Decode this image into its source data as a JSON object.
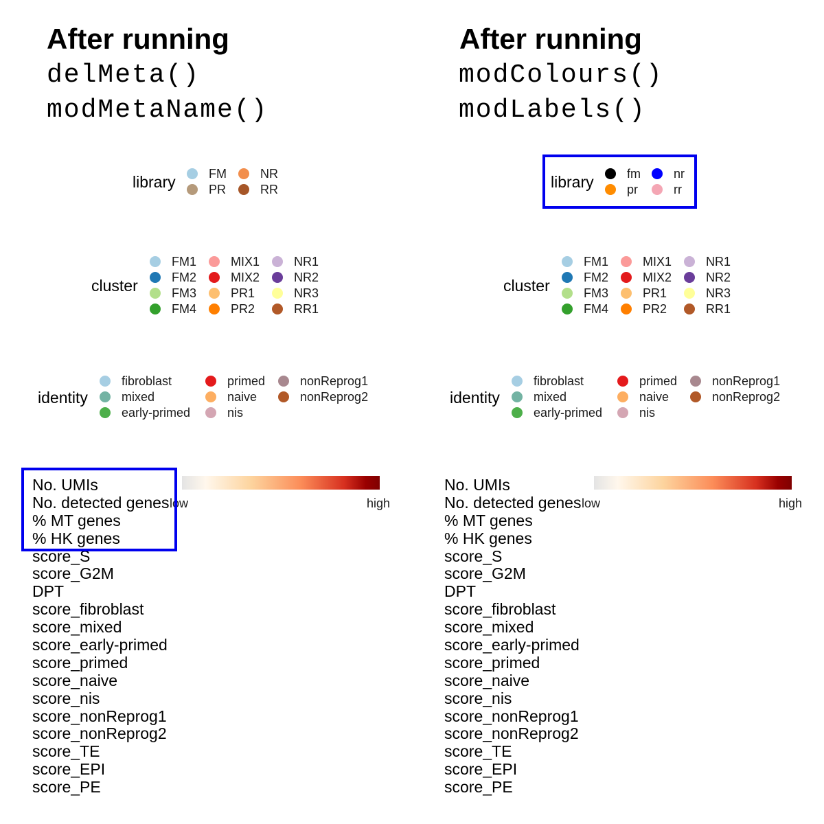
{
  "left": {
    "header": {
      "title": "After running",
      "fn1": "delMeta()",
      "fn2": "modMetaName()"
    },
    "library": {
      "title": "library",
      "items": [
        {
          "label": "FM",
          "color": "#a6cee3"
        },
        {
          "label": "NR",
          "color": "#f28e4c"
        },
        {
          "label": "PR",
          "color": "#b59a7b"
        },
        {
          "label": "RR",
          "color": "#a65628"
        }
      ]
    }
  },
  "right": {
    "header": {
      "title": "After running",
      "fn1": "modColours()",
      "fn2": "modLabels()"
    },
    "library": {
      "title": "library",
      "items": [
        {
          "label": "fm",
          "color": "#000000"
        },
        {
          "label": "nr",
          "color": "#0000ff"
        },
        {
          "label": "pr",
          "color": "#ff8c00"
        },
        {
          "label": "rr",
          "color": "#f4a6b4"
        }
      ]
    }
  },
  "cluster": {
    "title": "cluster",
    "items": [
      {
        "label": "FM1",
        "color": "#a6cee3"
      },
      {
        "label": "FM2",
        "color": "#1f78b4"
      },
      {
        "label": "FM3",
        "color": "#b2df8a"
      },
      {
        "label": "FM4",
        "color": "#33a02c"
      },
      {
        "label": "MIX1",
        "color": "#fb9a99"
      },
      {
        "label": "MIX2",
        "color": "#e31a1c"
      },
      {
        "label": "PR1",
        "color": "#fdbf6f"
      },
      {
        "label": "PR2",
        "color": "#ff7f00"
      },
      {
        "label": "NR1",
        "color": "#cab2d6"
      },
      {
        "label": "NR2",
        "color": "#6a3d9a"
      },
      {
        "label": "NR3",
        "color": "#ffff99"
      },
      {
        "label": "RR1",
        "color": "#b15928"
      }
    ]
  },
  "identity": {
    "title": "identity",
    "items": [
      {
        "label": "fibroblast",
        "color": "#a6cee3"
      },
      {
        "label": "mixed",
        "color": "#73b3a3"
      },
      {
        "label": "early-primed",
        "color": "#4daf4a"
      },
      {
        "label": "primed",
        "color": "#e41a1c"
      },
      {
        "label": "naive",
        "color": "#fdae61"
      },
      {
        "label": "nis",
        "color": "#d4a6b3"
      },
      {
        "label": "nonReprog1",
        "color": "#a8888f"
      },
      {
        "label": "nonReprog2",
        "color": "#b15928"
      }
    ]
  },
  "scores": [
    "No. UMIs",
    "No. detected genes",
    "% MT genes",
    "% HK genes",
    "score_S",
    "score_G2M",
    "DPT",
    "score_fibroblast",
    "score_mixed",
    "score_early-primed",
    "score_primed",
    "score_naive",
    "score_nis",
    "score_nonReprog1",
    "score_nonReprog2",
    "score_TE",
    "score_EPI",
    "score_PE"
  ],
  "gradient": {
    "low": "low",
    "high": "high"
  },
  "highlight_color": "#0000ee"
}
